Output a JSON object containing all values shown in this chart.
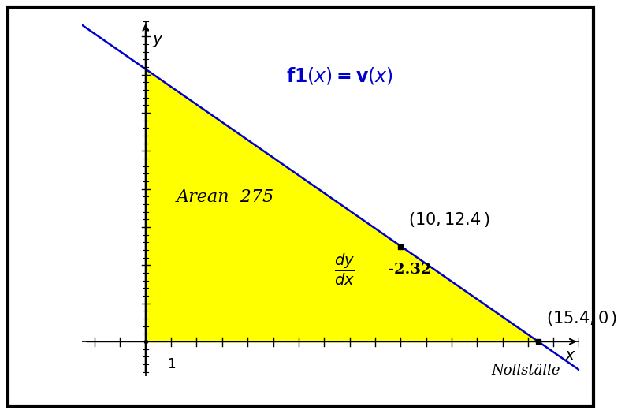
{
  "xlim": [
    -2.5,
    17.0
  ],
  "ylim": [
    -4.5,
    42
  ],
  "x_zero_cross": 15.4,
  "slope": -2.32,
  "fill_color": "#ffff00",
  "line_color": "#0000cc",
  "background_color": "#ffffff",
  "point1": [
    10,
    12.4
  ],
  "point2": [
    15.4,
    0
  ],
  "area_label": "Arean  275",
  "dy_dx_value": "-2.32",
  "nollstalle_label": "Nollställe",
  "tick_label_1": "1",
  "text_color_blue": "#0000cc",
  "font_size_title": 17,
  "font_size_area": 16,
  "font_size_annotation": 15,
  "font_size_axis_label": 15,
  "font_size_tick": 12,
  "font_size_noll": 13
}
